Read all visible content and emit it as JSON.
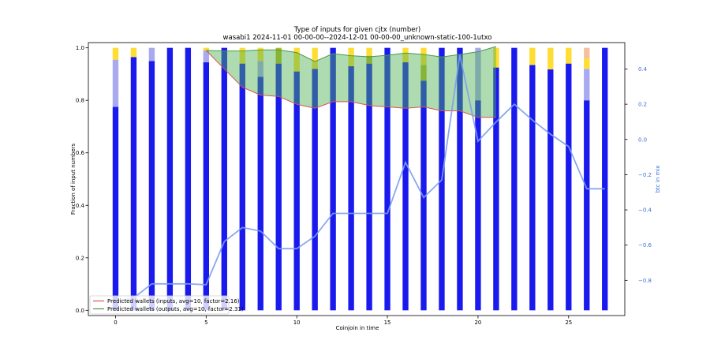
{
  "chart_data": {
    "type": "bar",
    "title": "Type of inputs for given cjtx (number)",
    "subtitle": "wasabi1 2024-11-01 00-00-00--2024-12-01 00-00-00_unknown-static-100-1utxo",
    "xlabel": "Coinjoin in time",
    "ylabel": "Fraction of input numbers",
    "ylabel_right": "btc in mix",
    "xlim": [
      -1.5,
      28.1
    ],
    "ylim": [
      -0.02,
      1.02
    ],
    "ylim_right": [
      -1.0,
      0.55
    ],
    "x_ticks": [
      0,
      5,
      10,
      15,
      20,
      25
    ],
    "y_ticks": [
      0.0,
      0.2,
      0.4,
      0.6,
      0.8,
      1.0
    ],
    "y_ticks_right": [
      -0.8,
      -0.6,
      -0.4,
      -0.2,
      0.0,
      0.2,
      0.4
    ],
    "y_tick_labels": [
      "0.0",
      "0.2",
      "0.4",
      "0.6",
      "0.8",
      "1.0"
    ],
    "y_tick_labels_right": [
      "−0.8",
      "−0.6",
      "−0.4",
      "−0.2",
      "0.0",
      "0.2",
      "0.4"
    ],
    "x": [
      0,
      1,
      2,
      3,
      4,
      5,
      6,
      7,
      8,
      9,
      10,
      11,
      12,
      13,
      14,
      15,
      16,
      17,
      18,
      19,
      20,
      21,
      22,
      23,
      24,
      25,
      26,
      27
    ],
    "series": [
      {
        "key": "fresh",
        "color": "#1a1aee",
        "values": [
          0.775,
          0.965,
          0.95,
          1.0,
          1.0,
          0.945,
          1.0,
          0.94,
          0.89,
          0.94,
          0.91,
          0.92,
          1.0,
          0.93,
          0.94,
          1.0,
          0.945,
          0.875,
          1.0,
          1.0,
          0.8,
          0.925,
          1.0,
          0.935,
          0.918,
          0.94,
          0.8,
          1.0
        ]
      },
      {
        "key": "remix_1",
        "color": "#a9a9f2",
        "values": [
          0.18,
          0.0,
          0.05,
          0.0,
          0.0,
          0.045,
          0.0,
          0.0,
          0.06,
          0.0,
          0.0,
          0.0,
          0.0,
          0.0,
          0.0,
          0.0,
          0.0,
          0.0,
          0.0,
          0.0,
          0.2,
          0.0,
          0.0,
          0.0,
          0.0,
          0.0,
          0.12,
          0.0
        ]
      },
      {
        "key": "remix_2",
        "color": "#b8b820",
        "values": [
          0.0,
          0.0,
          0.0,
          0.0,
          0.0,
          0.0,
          0.0,
          0.0,
          0.0,
          0.06,
          0.0,
          0.0,
          0.0,
          0.0,
          0.03,
          0.0,
          0.0,
          0.06,
          0.0,
          0.0,
          0.0,
          0.0,
          0.0,
          0.0,
          0.0,
          0.0,
          0.0,
          0.0
        ]
      },
      {
        "key": "remix_3",
        "color": "#ffdd33",
        "values": [
          0.045,
          0.035,
          0.0,
          0.0,
          0.0,
          0.01,
          0.0,
          0.06,
          0.05,
          0.0,
          0.09,
          0.08,
          0.0,
          0.07,
          0.03,
          0.0,
          0.055,
          0.065,
          0.0,
          0.0,
          0.0,
          0.075,
          0.0,
          0.065,
          0.082,
          0.06,
          0.04,
          0.0
        ]
      },
      {
        "key": "remix_4",
        "color": "#f5c0a0",
        "values": [
          0.0,
          0.0,
          0.0,
          0.0,
          0.0,
          0.0,
          0.0,
          0.0,
          0.0,
          0.0,
          0.0,
          0.0,
          0.0,
          0.0,
          0.0,
          0.0,
          0.0,
          0.0,
          0.0,
          0.0,
          0.0,
          0.0,
          0.0,
          0.0,
          0.0,
          0.0,
          0.04,
          0.0
        ]
      }
    ],
    "lines": [
      {
        "name": "Predicted wallets (inputs, avg=10, factor=2.16)",
        "color": "#d9534f",
        "x": [
          5,
          6,
          7,
          8,
          9,
          10,
          11,
          12,
          13,
          14,
          15,
          16,
          17,
          18,
          19,
          20,
          21
        ],
        "values": [
          0.99,
          0.92,
          0.85,
          0.82,
          0.815,
          0.785,
          0.77,
          0.795,
          0.795,
          0.78,
          0.775,
          0.77,
          0.775,
          0.76,
          0.76,
          0.735,
          0.735
        ]
      },
      {
        "name": "Predicted wallets (outputs, avg=10, factor=2.31)",
        "color": "#4a9a4a",
        "x": [
          5,
          6,
          7,
          8,
          9,
          10,
          11,
          12,
          13,
          14,
          15,
          16,
          17,
          18,
          19,
          20,
          21
        ],
        "values": [
          0.99,
          0.988,
          0.988,
          0.992,
          0.992,
          0.982,
          0.948,
          0.978,
          0.97,
          0.966,
          0.972,
          0.98,
          0.975,
          0.965,
          0.975,
          0.985,
          1.005
        ]
      }
    ],
    "btc_in_mix": {
      "name": "btc in mix",
      "axis": "right",
      "color": "#7c9df0",
      "x": [
        0,
        1,
        2,
        3,
        4,
        5,
        6,
        7,
        8,
        9,
        10,
        11,
        12,
        13,
        14,
        15,
        16,
        17,
        18,
        19,
        20,
        21,
        22,
        23,
        24,
        25,
        26,
        27
      ],
      "values": [
        -0.92,
        -0.9,
        -0.82,
        -0.82,
        -0.82,
        -0.825,
        -0.58,
        -0.5,
        -0.52,
        -0.62,
        -0.62,
        -0.55,
        -0.42,
        -0.42,
        -0.42,
        -0.42,
        -0.13,
        -0.33,
        -0.23,
        0.48,
        -0.01,
        0.1,
        0.2,
        0.11,
        0.03,
        -0.04,
        -0.28,
        -0.28
      ]
    },
    "legend_position": "lower-left",
    "grid": false
  }
}
